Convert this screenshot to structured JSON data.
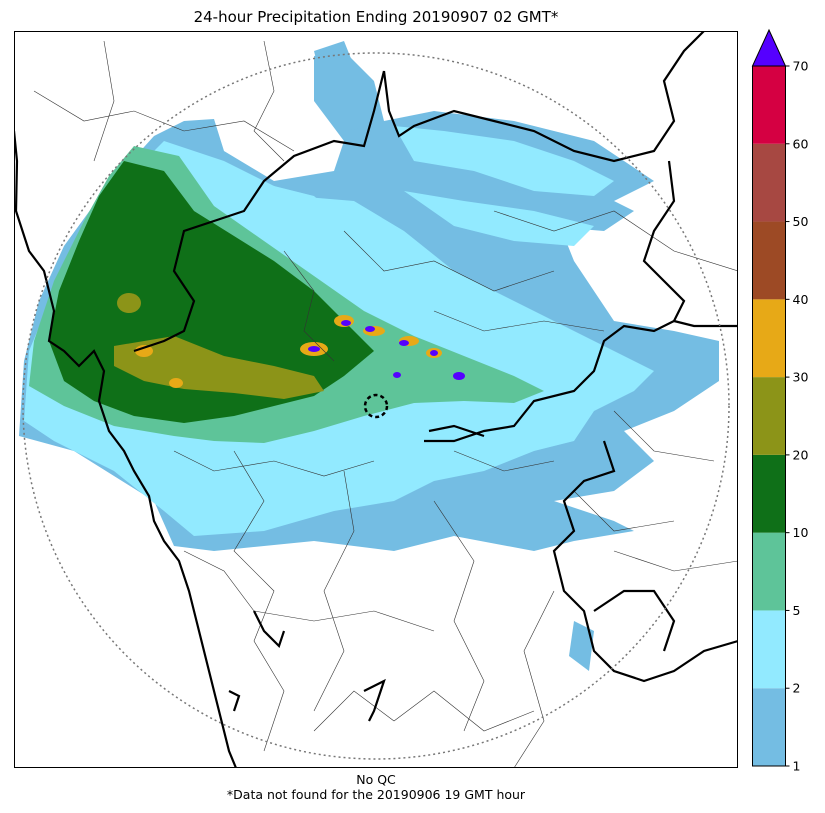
{
  "title": "24-hour Precipitation Ending 20190907 02 GMT*",
  "footer": {
    "qc_label": "No QC",
    "note": "*Data not found for the 20190906 19 GMT hour"
  },
  "colorbar": {
    "ticks": [
      "1",
      "2",
      "5",
      "10",
      "20",
      "30",
      "40",
      "50",
      "60",
      "70"
    ],
    "colors": [
      "#74bde3",
      "#92eaff",
      "#5ec499",
      "#0f7018",
      "#8c9418",
      "#e7a917",
      "#9d4a25",
      "#a74842",
      "#d50042"
    ],
    "extend_color": "#5500ff"
  },
  "legend_colors": {
    "light_blue": "#74bde3",
    "cyan": "#92eaff",
    "sea_green": "#5ec499",
    "dark_green": "#0f7018",
    "olive": "#8c9418",
    "orange": "#e7a917",
    "purple": "#5500ff"
  }
}
